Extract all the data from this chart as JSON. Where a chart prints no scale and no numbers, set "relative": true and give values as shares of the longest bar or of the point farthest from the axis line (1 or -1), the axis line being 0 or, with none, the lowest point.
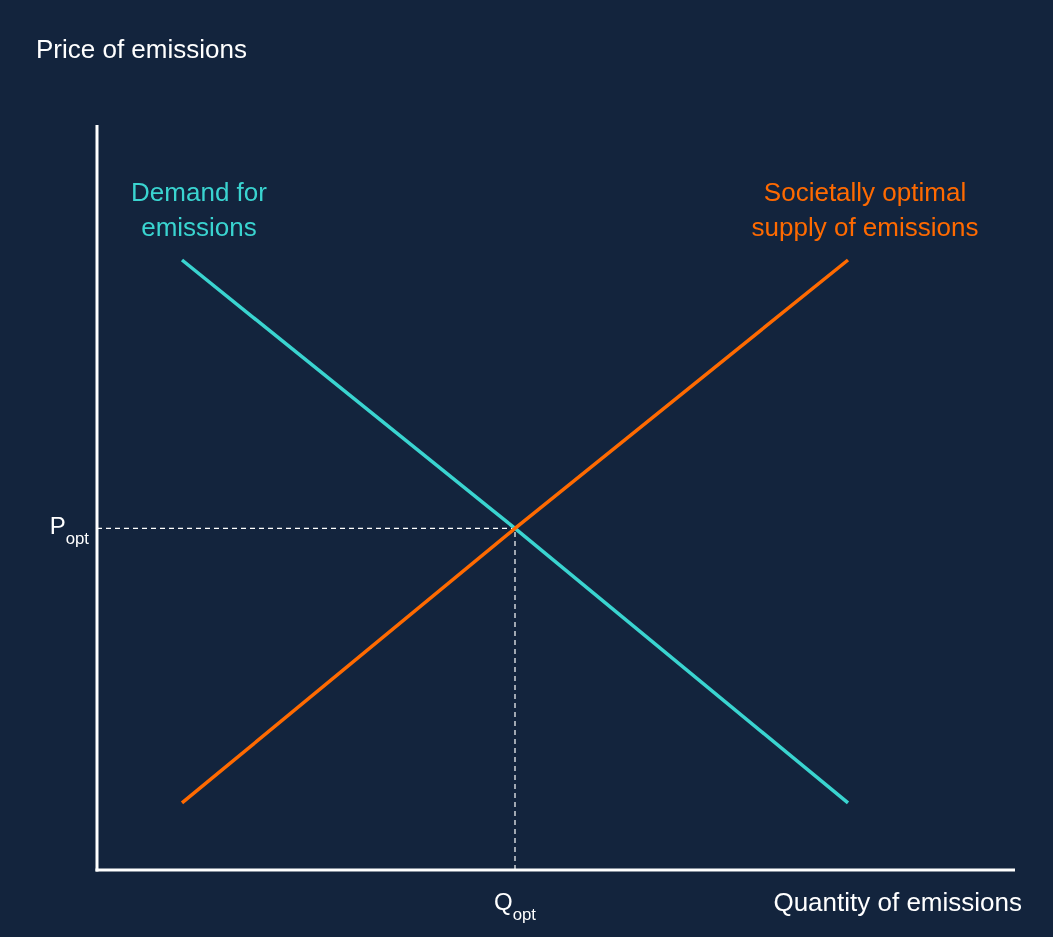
{
  "chart_data": {
    "type": "line",
    "relative": true,
    "xlabel": "Quantity of emissions",
    "annotations": [
      "Price of emissions",
      "Q$_{opt}$"
    ],
    "categories": [
      null,
      null,
      null
    ],
    "series": [
      {
        "name": "Demand for emissions",
        "color": "#3ad4d0",
        "values": [
          1,
          0.56,
          0.11
        ]
      },
      {
        "name": "Societally optimal supply of emissions",
        "color": "#ff6a00",
        "values": [
          0.11,
          0.56,
          1
        ]
      }
    ],
    "ref_lines": [
      {
        "axis": "y",
        "value": 0.56,
        "label": "P$_{opt}$",
        "line_style": "dashed",
        "color": "#ffffff"
      }
    ],
    "marker": "none",
    "line_style": "solid"
  }
}
